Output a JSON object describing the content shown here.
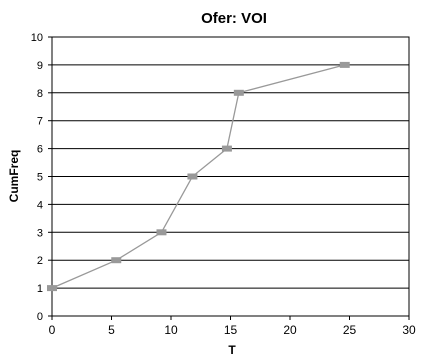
{
  "chart_data": {
    "type": "line",
    "title": "Ofer: VOI",
    "xlabel": "T",
    "ylabel": "CumFreq",
    "xlim": [
      0,
      30
    ],
    "ylim": [
      0,
      10
    ],
    "x_ticks": [
      0,
      5,
      10,
      15,
      20,
      25,
      30
    ],
    "y_ticks": [
      0,
      1,
      2,
      3,
      4,
      5,
      6,
      7,
      8,
      9,
      10
    ],
    "grid": "horizontal",
    "legend": "none",
    "series": [
      {
        "x": [
          0.0,
          5.4,
          9.2,
          11.8,
          14.7,
          15.7,
          24.6
        ],
        "y": [
          1,
          2,
          3,
          5,
          6,
          8,
          9
        ]
      }
    ],
    "colors": {
      "line": "#999999",
      "marker": "#999999",
      "grid": "#000000",
      "frame": "#000000"
    }
  }
}
